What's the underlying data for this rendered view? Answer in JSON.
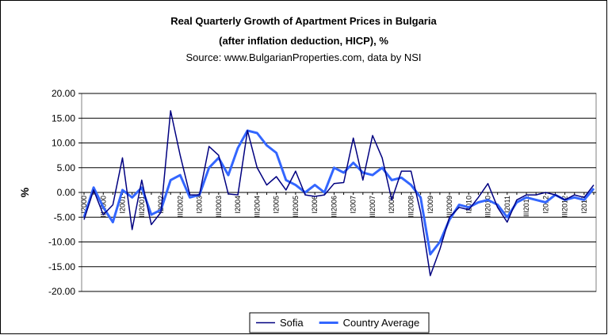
{
  "chart_data": {
    "type": "line",
    "title": "Real Quarterly Growth of Apartment Prices in Bulgaria",
    "subtitle": "(after inflation deduction, HICP), %",
    "source": "Source: www.BulgarianProperties.com, data by NSI",
    "y_label": "%",
    "categories": [
      "I2000",
      null,
      "III2000",
      null,
      "I2001",
      null,
      "III2001",
      null,
      "I2002",
      null,
      "III2002",
      null,
      "I2003",
      null,
      "III2003",
      null,
      "I2004",
      null,
      "III2004",
      null,
      "I2005",
      null,
      "III2005",
      null,
      "I2006",
      null,
      "III2006",
      null,
      "I2007",
      null,
      "III2007",
      null,
      "I2008",
      null,
      "III2008",
      null,
      "I2009",
      null,
      "III2009",
      null,
      "I2010",
      null,
      "III2010",
      null,
      "I2011",
      null,
      "III2011",
      null,
      "I2012",
      null,
      "III2012",
      null,
      "I2013",
      null
    ],
    "series": [
      {
        "name": "Sofia",
        "color": "#000080",
        "width": 1.5,
        "values": [
          -5.5,
          0.5,
          -4.5,
          -2.5,
          7,
          -7.5,
          2.5,
          -6.5,
          -4,
          16.5,
          7.5,
          -0.5,
          -0.5,
          9.3,
          7.5,
          -0.3,
          -0.5,
          12.5,
          5,
          1.5,
          3.2,
          0.5,
          4.3,
          -0.5,
          -0.8,
          -0.5,
          1.8,
          2,
          11,
          2.5,
          11.5,
          7,
          -1.5,
          4.3,
          4.3,
          -4,
          -16.8,
          -11.5,
          -5,
          -3,
          -3.5,
          -1,
          1.8,
          -3,
          -6,
          -1.5,
          -0.5,
          -0.5,
          0,
          -0.5,
          -1.5,
          -0.5,
          -1,
          1.5
        ]
      },
      {
        "name": "Country Average",
        "color": "#3366ff",
        "width": 3,
        "values": [
          -5,
          1,
          -3,
          -6,
          0.5,
          -1,
          1,
          -4.5,
          -3.5,
          2.5,
          3.5,
          -1,
          -0.5,
          5,
          7,
          3.5,
          9,
          12.5,
          12,
          9.5,
          8,
          2.5,
          1.5,
          0,
          1.5,
          0,
          5,
          4,
          6,
          4,
          3.5,
          5,
          2.5,
          3,
          1.5,
          -1,
          -12.5,
          -10,
          -5.5,
          -2.5,
          -3,
          -2,
          -1.5,
          -2.5,
          -5,
          -2,
          -1,
          -1.5,
          -2,
          -0.5,
          -1.5,
          -1,
          -1.5,
          0.8
        ]
      }
    ],
    "ylim": [
      -20,
      20
    ],
    "yticks": [
      {
        "value": -20,
        "label": "-20.00"
      },
      {
        "value": -15,
        "label": "-15.00"
      },
      {
        "value": -10,
        "label": "-10.00"
      },
      {
        "value": -5,
        "label": "-5.00"
      },
      {
        "value": 0,
        "label": "0.00"
      },
      {
        "value": 5,
        "label": "5.00"
      },
      {
        "value": 10,
        "label": "10.00"
      },
      {
        "value": 15,
        "label": "15.00"
      },
      {
        "value": 20,
        "label": "20.00"
      }
    ],
    "grid": true,
    "legend": "bottom"
  }
}
